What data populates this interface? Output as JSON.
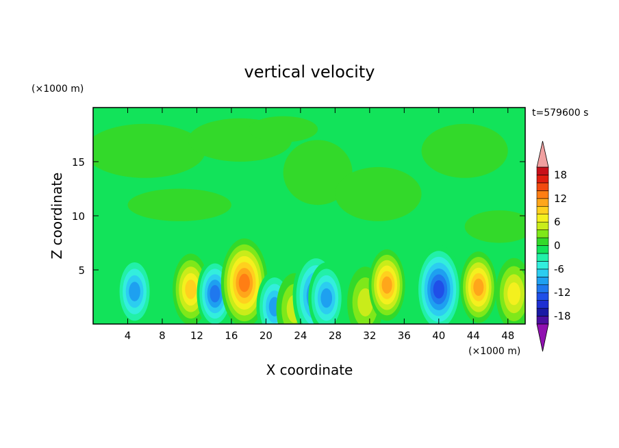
{
  "chart_data": {
    "type": "heatmap",
    "title": "vertical velocity",
    "xlabel": "X coordinate",
    "ylabel": "Z coordinate",
    "x_unit": "(×1000 m)",
    "y_unit": "(×1000 m)",
    "time_label": "t=579600 s",
    "xlim": [
      0,
      50
    ],
    "ylim": [
      0,
      20
    ],
    "x_ticks": [
      4,
      8,
      12,
      16,
      20,
      24,
      28,
      32,
      36,
      40,
      44,
      48
    ],
    "x_tick_labels": [
      "4",
      "8",
      "12",
      "16",
      "20",
      "24",
      "28",
      "32",
      "36",
      "40",
      "44",
      "48"
    ],
    "y_ticks": [
      5,
      10,
      15
    ],
    "y_tick_labels": [
      "5",
      "10",
      "15"
    ],
    "colorbar": {
      "levels": [
        -20,
        -18,
        -16,
        -14,
        -12,
        -10,
        -8,
        -6,
        -4,
        -2,
        0,
        2,
        4,
        6,
        8,
        10,
        12,
        14,
        16,
        18,
        20
      ],
      "tick_values": [
        -18,
        -12,
        -6,
        0,
        6,
        12,
        18
      ],
      "tick_labels": [
        "-18",
        "-12",
        "-6",
        "0",
        "6",
        "12",
        "18"
      ],
      "colors": [
        "#4b0fa0",
        "#1a1aa5",
        "#1e2fd2",
        "#1f4fe8",
        "#1f78ee",
        "#1ea0f0",
        "#2ccdf0",
        "#33eedd",
        "#22f0a8",
        "#12e35a",
        "#33d92a",
        "#7fe81a",
        "#c9ec1a",
        "#f4f01e",
        "#ffd01e",
        "#ffa61a",
        "#ff7e14",
        "#f24a10",
        "#e01e10",
        "#c8101a"
      ],
      "under_color": "#9010b0",
      "over_color": "#f0a0a0"
    },
    "features": [
      {
        "x": 4.8,
        "z": 3.0,
        "w": -9
      },
      {
        "x": 11.3,
        "z": 3.2,
        "w": 9
      },
      {
        "x": 14.1,
        "z": 2.8,
        "w": -10
      },
      {
        "x": 17.5,
        "z": 3.8,
        "w": 12
      },
      {
        "x": 21.0,
        "z": 1.6,
        "w": -8
      },
      {
        "x": 23.3,
        "z": 1.4,
        "w": 5
      },
      {
        "x": 25.8,
        "z": 2.6,
        "w": -11
      },
      {
        "x": 27.0,
        "z": 2.4,
        "w": -9
      },
      {
        "x": 31.5,
        "z": 2.0,
        "w": 5
      },
      {
        "x": 34.0,
        "z": 3.6,
        "w": 10
      },
      {
        "x": 40.0,
        "z": 3.2,
        "w": -13
      },
      {
        "x": 44.6,
        "z": 3.4,
        "w": 10
      },
      {
        "x": 48.7,
        "z": 2.8,
        "w": 7
      }
    ]
  }
}
